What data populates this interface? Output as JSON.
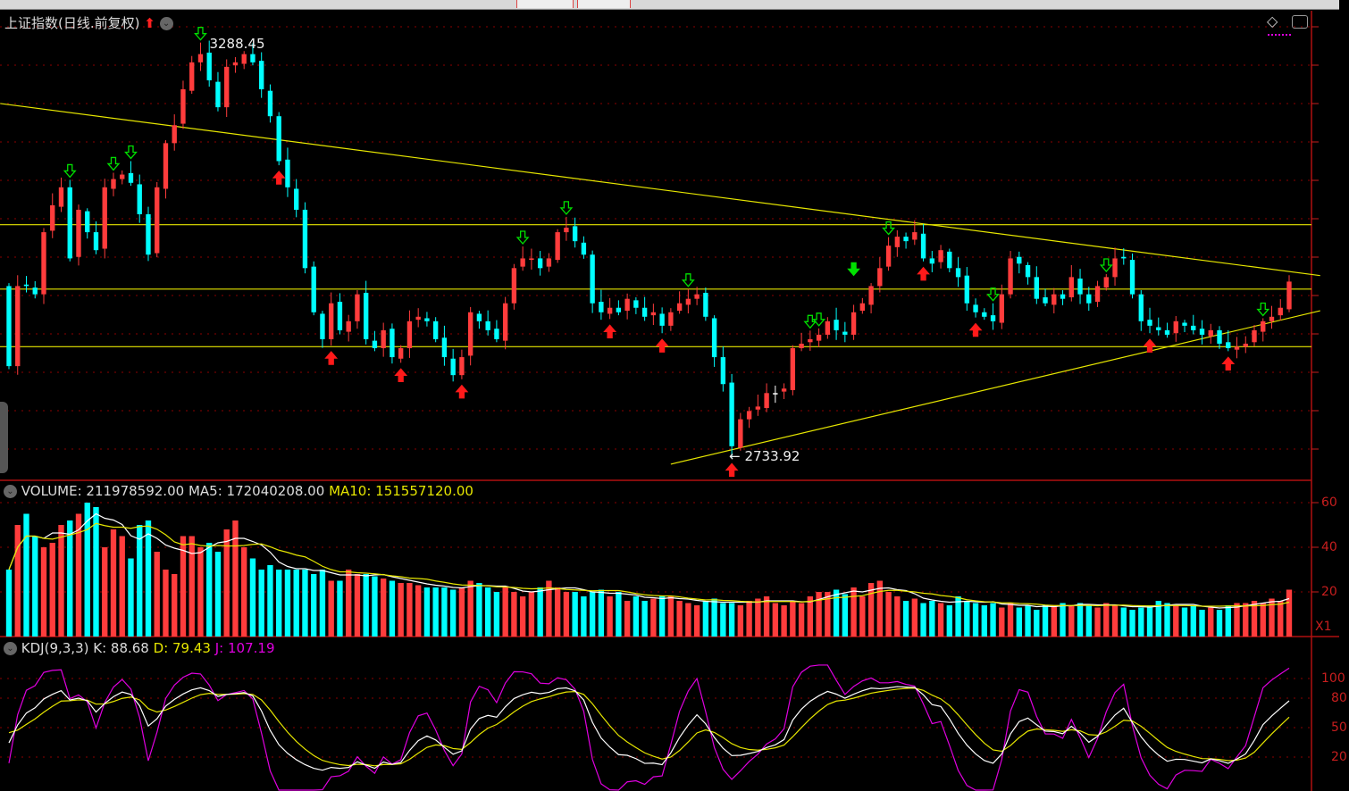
{
  "main": {
    "title": "上证指数(日线.前复权)",
    "high_label": {
      "index": 22,
      "value": "3288.45"
    },
    "low_label": {
      "index": 83,
      "value": "2733.92"
    }
  },
  "volume_panel": {
    "label": "VOLUME: 211978592.00",
    "ma5_label": "MA5: 172040208.00",
    "ma10_label": "MA10: 151557120.00",
    "axis_labels": [
      "60",
      "40",
      "20"
    ],
    "multiplier_label": "X1"
  },
  "kdj_panel": {
    "label": "KDJ(9,3,3)",
    "k_label": "K: 88.68",
    "d_label": "D: 79.43",
    "j_label": "J: 107.19",
    "axis_labels": [
      "100",
      "80",
      "50",
      "20"
    ]
  },
  "colors": {
    "up": "#ff3c3c",
    "down": "#00ffff",
    "ma5": "#ffffff",
    "ma10": "#e6e600",
    "j": "#e000e0",
    "trendline": "#e6e600",
    "grid": "#8b0000"
  },
  "chart_data": {
    "type": "candlestick",
    "ylim": [
      2707,
      3331
    ],
    "close": [
      2856,
      2963,
      2963,
      2952,
      3035,
      3071,
      3095,
      3000,
      3065,
      3035,
      3011,
      3095,
      3106,
      3112,
      3101,
      3059,
      3005,
      3095,
      3154,
      3178,
      3226,
      3262,
      3273,
      3238,
      3202,
      3256,
      3262,
      3273,
      3262,
      3226,
      3190,
      3130,
      3095,
      3065,
      2987,
      2928,
      2892,
      2940,
      2904,
      2916,
      2952,
      2892,
      2880,
      2904,
      2868,
      2880,
      2916,
      2922,
      2916,
      2892,
      2868,
      2844,
      2868,
      2928,
      2916,
      2904,
      2892,
      2940,
      2987,
      3000,
      3000,
      2987,
      3000,
      3035,
      3041,
      3023,
      3005,
      2940,
      2928,
      2934,
      2928,
      2946,
      2934,
      2922,
      2928,
      2910,
      2928,
      2940,
      2946,
      2952,
      2922,
      2868,
      2832,
      2749,
      2785,
      2796,
      2802,
      2820,
      2820,
      2826,
      2880,
      2886,
      2892,
      2898,
      2916,
      2904,
      2898,
      2928,
      2940,
      2963,
      2987,
      3017,
      3029,
      3023,
      3035,
      3000,
      2993,
      3011,
      2987,
      2975,
      2940,
      2928,
      2922,
      2916,
      2952,
      3000,
      2993,
      2975,
      2946,
      2940,
      2952,
      2946,
      2975,
      2952,
      2940,
      2963,
      2975,
      3000,
      3000,
      2952,
      2916,
      2910,
      2904,
      2898,
      2916,
      2910,
      2904,
      2898,
      2904,
      2886,
      2880,
      2882,
      2886,
      2904,
      2916,
      2922,
      2934,
      2969
    ],
    "volume": [
      30,
      50,
      55,
      45,
      40,
      42,
      50,
      52,
      55,
      60,
      58,
      40,
      48,
      45,
      35,
      50,
      52,
      38,
      30,
      28,
      45,
      45,
      40,
      42,
      38,
      48,
      52,
      40,
      35,
      30,
      32,
      30,
      30,
      30,
      30,
      28,
      30,
      25,
      25,
      30,
      28,
      28,
      27,
      26,
      25,
      24,
      24,
      23,
      22,
      22,
      22,
      21,
      22,
      25,
      24,
      22,
      20,
      22,
      20,
      18,
      20,
      22,
      25,
      22,
      20,
      20,
      18,
      20,
      21,
      18,
      20,
      16,
      18,
      16,
      17,
      18,
      18,
      16,
      15,
      14,
      16,
      17,
      15,
      15,
      14,
      16,
      17,
      18,
      15,
      14,
      16,
      15,
      18,
      20,
      20,
      21,
      19,
      22,
      18,
      24,
      25,
      20,
      18,
      16,
      17,
      15,
      16,
      15,
      14,
      18,
      16,
      15,
      14,
      15,
      13,
      15,
      13,
      14,
      12,
      14,
      14,
      15,
      14,
      15,
      14,
      13,
      15,
      14,
      13,
      12,
      13,
      14,
      16,
      15,
      14,
      13,
      14,
      12,
      13,
      12,
      14,
      15,
      15,
      16,
      15,
      17,
      16,
      21
    ],
    "horizontal_lines": [
      3045,
      2959,
      2882
    ],
    "trend_lines": [
      {
        "from": {
          "index": -1,
          "value": 3207
        },
        "to": {
          "index": 148,
          "value": 2977
        }
      },
      {
        "from": {
          "index": 76,
          "value": 2725
        },
        "to": {
          "index": 148,
          "value": 2930
        }
      }
    ],
    "buy_signals": [
      31,
      37,
      45,
      52,
      69,
      75,
      83,
      105,
      111,
      131,
      140
    ],
    "sell_signals": [
      7,
      12,
      14,
      22,
      59,
      64,
      78,
      92,
      93,
      101,
      113,
      126,
      144
    ],
    "strong_sell_signals": [
      97
    ]
  }
}
